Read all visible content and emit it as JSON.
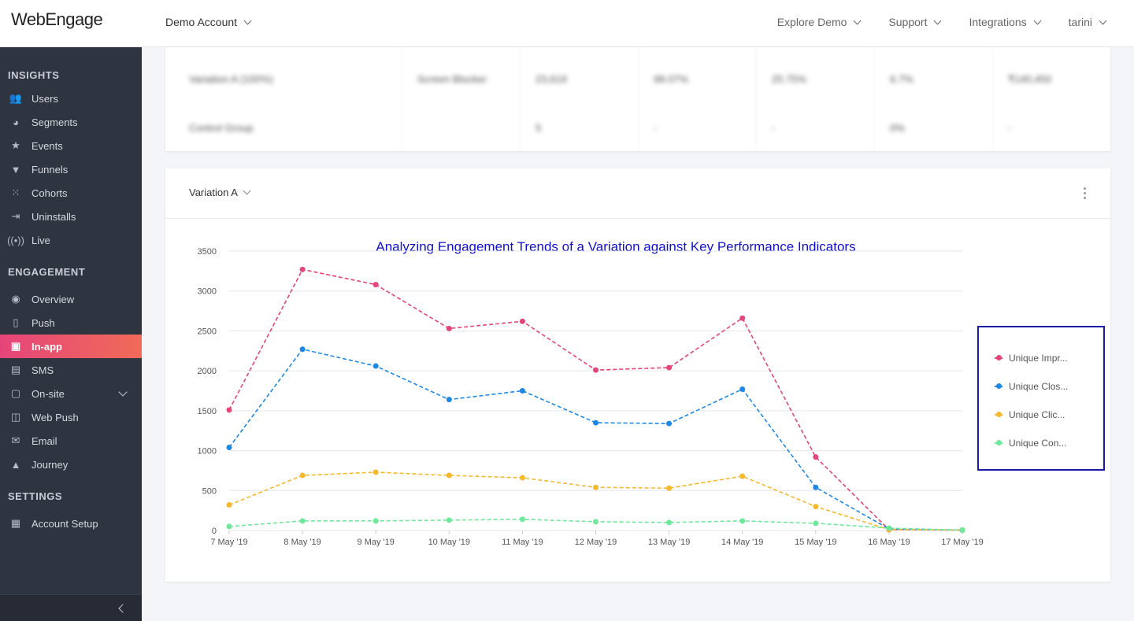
{
  "header": {
    "logo": "WebEngage",
    "account": "Demo Account",
    "nav": [
      "Explore Demo",
      "Support",
      "Integrations",
      "tarini"
    ]
  },
  "sidebar": {
    "sections": [
      {
        "title": "INSIGHTS",
        "items": [
          {
            "label": "Users",
            "icon": "users-icon"
          },
          {
            "label": "Segments",
            "icon": "pie-icon"
          },
          {
            "label": "Events",
            "icon": "star-icon"
          },
          {
            "label": "Funnels",
            "icon": "funnel-icon"
          },
          {
            "label": "Cohorts",
            "icon": "grid-icon"
          },
          {
            "label": "Uninstalls",
            "icon": "exit-icon"
          },
          {
            "label": "Live",
            "icon": "broadcast-icon"
          }
        ]
      },
      {
        "title": "ENGAGEMENT",
        "items": [
          {
            "label": "Overview",
            "icon": "eye-icon"
          },
          {
            "label": "Push",
            "icon": "phone-icon"
          },
          {
            "label": "In-app",
            "icon": "inapp-icon",
            "active": true
          },
          {
            "label": "SMS",
            "icon": "chat-icon"
          },
          {
            "label": "On-site",
            "icon": "window-icon",
            "expandable": true
          },
          {
            "label": "Web Push",
            "icon": "browser-icon"
          },
          {
            "label": "Email",
            "icon": "mail-icon"
          },
          {
            "label": "Journey",
            "icon": "rocket-icon"
          }
        ]
      },
      {
        "title": "SETTINGS",
        "items": [
          {
            "label": "Account Setup",
            "icon": "dashboard-icon"
          }
        ]
      }
    ]
  },
  "table": {
    "rows": [
      [
        "Variation A (100%)",
        "Screen Blocker",
        "23,619",
        "98.07%",
        "25.75%",
        "6.7%",
        "₹140,450"
      ],
      [
        "Control Group",
        "",
        "5",
        "-",
        "-",
        "0%",
        "-"
      ]
    ]
  },
  "card": {
    "variation_label": "Variation A"
  },
  "chart_data": {
    "type": "line",
    "title": "Analyzing Engagement Trends of a Variation against Key Performance Indicators",
    "categories": [
      "7 May '19",
      "8 May '19",
      "9 May '19",
      "10 May '19",
      "11 May '19",
      "12 May '19",
      "13 May '19",
      "14 May '19",
      "15 May '19",
      "16 May '19",
      "17 May '19"
    ],
    "ylim": [
      0,
      3500
    ],
    "yticks": [
      0,
      500,
      1000,
      1500,
      2000,
      2500,
      3000,
      3500
    ],
    "grid": true,
    "legend_position": "right",
    "series": [
      {
        "name": "Unique Impr...",
        "color": "#e5457a",
        "values": [
          1510,
          3270,
          3080,
          2530,
          2620,
          2010,
          2040,
          2660,
          920,
          10,
          5
        ]
      },
      {
        "name": "Unique Clos...",
        "color": "#1e88e5",
        "values": [
          1040,
          2270,
          2060,
          1640,
          1750,
          1350,
          1340,
          1770,
          540,
          20,
          5
        ]
      },
      {
        "name": "Unique Clic...",
        "color": "#f5b82e",
        "values": [
          320,
          690,
          730,
          690,
          660,
          540,
          530,
          680,
          300,
          10,
          5
        ]
      },
      {
        "name": "Unique Con...",
        "color": "#6ee89a",
        "values": [
          50,
          120,
          120,
          130,
          140,
          110,
          100,
          120,
          90,
          30,
          5
        ]
      }
    ]
  }
}
